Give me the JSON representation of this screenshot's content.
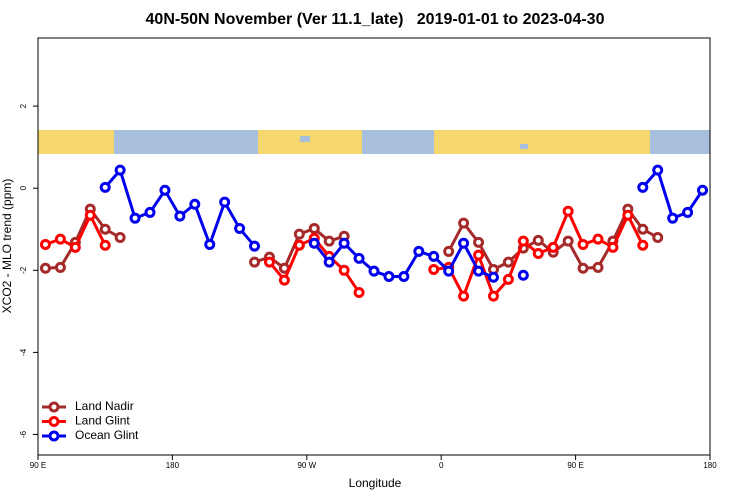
{
  "chart_data": {
    "type": "line",
    "title": "40N-50N November (Ver 11.1_late)   2019-01-01 to 2023-04-30",
    "xlabel": "Longitude",
    "ylabel": "XCO2 - MLO trend (ppm)",
    "x": [
      95,
      105,
      115,
      125,
      135,
      145,
      155,
      165,
      175,
      185,
      195,
      205,
      215,
      225,
      235,
      245,
      255,
      265,
      275,
      285,
      295,
      305,
      315,
      325,
      335,
      345,
      355,
      365,
      375,
      385,
      395,
      405,
      415,
      425,
      435,
      445,
      455,
      465,
      475,
      485,
      495,
      505,
      515,
      525,
      535
    ],
    "xlim": [
      90,
      540
    ],
    "xticks": [
      {
        "value": 90,
        "label": "90 E"
      },
      {
        "value": 180,
        "label": "180"
      },
      {
        "value": 270,
        "label": "90 W"
      },
      {
        "value": 360,
        "label": "0"
      },
      {
        "value": 450,
        "label": "90 E"
      },
      {
        "value": 540,
        "label": "180"
      }
    ],
    "ylim": [
      -6.5,
      3.66
    ],
    "yticks": [
      -6,
      -4,
      -2,
      0,
      2
    ],
    "legend": "bottomleft",
    "series": [
      {
        "name": "Land Nadir",
        "color": "#a52a2a",
        "values": [
          -1.95,
          -1.93,
          -1.32,
          -0.51,
          -1.0,
          -1.2,
          null,
          null,
          null,
          null,
          null,
          null,
          null,
          null,
          -1.8,
          -1.68,
          -1.95,
          -1.12,
          -0.98,
          -1.29,
          -1.17,
          null,
          null,
          null,
          null,
          null,
          null,
          -1.54,
          -0.85,
          -1.32,
          -1.98,
          -1.8,
          -1.46,
          -1.27,
          -1.56,
          -1.29,
          -1.95,
          -1.93,
          -1.29,
          -0.51,
          -1.0,
          -1.2,
          null,
          null,
          null
        ]
      },
      {
        "name": "Land Glint",
        "color": "#ff0000",
        "values": [
          -1.37,
          -1.24,
          -1.44,
          -0.66,
          -1.39,
          null,
          null,
          null,
          null,
          null,
          null,
          null,
          null,
          null,
          null,
          -1.8,
          -2.24,
          -1.39,
          -1.22,
          -1.66,
          -2.0,
          -2.54,
          null,
          null,
          null,
          null,
          -1.98,
          -1.93,
          -2.63,
          -1.63,
          -2.63,
          -2.22,
          -1.29,
          -1.59,
          -1.44,
          -0.56,
          -1.37,
          -1.24,
          -1.44,
          -0.66,
          -1.39,
          null,
          null,
          null,
          null
        ]
      },
      {
        "name": "Ocean Glint",
        "color": "#0000ee",
        "values": [
          null,
          null,
          null,
          null,
          0.02,
          0.44,
          -0.73,
          -0.59,
          -0.05,
          -0.68,
          -0.39,
          -1.37,
          -0.34,
          -0.98,
          -1.41,
          null,
          null,
          null,
          -1.34,
          -1.8,
          -1.34,
          -1.71,
          -2.02,
          -2.15,
          -2.15,
          -1.54,
          -1.66,
          -2.02,
          -1.34,
          -2.02,
          -2.17,
          null,
          -2.12,
          null,
          null,
          null,
          null,
          null,
          null,
          null,
          0.02,
          0.44,
          -0.73,
          -0.59,
          -0.05
        ]
      }
    ]
  }
}
